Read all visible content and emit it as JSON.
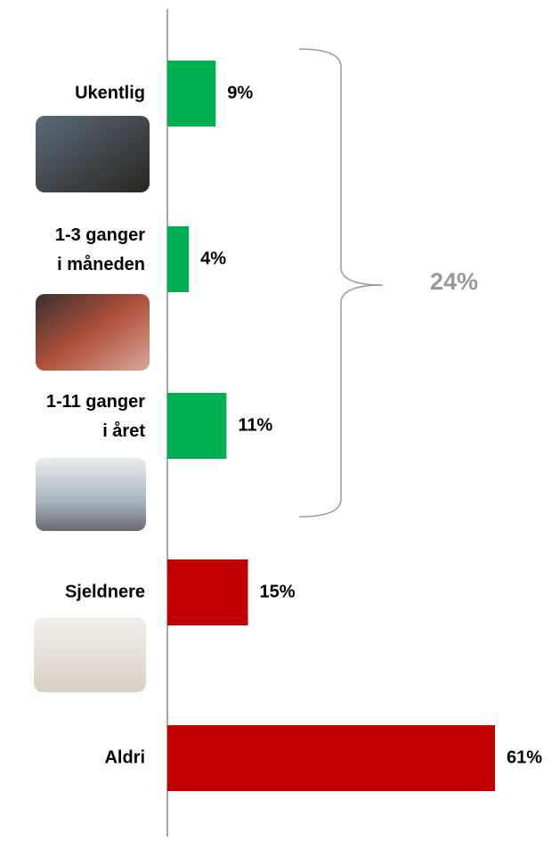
{
  "chart_data": {
    "type": "bar",
    "orientation": "horizontal",
    "categories": [
      [
        "Ukentlig"
      ],
      [
        "1-3 ganger",
        "i måneden"
      ],
      [
        "1-11 ganger",
        "i året"
      ],
      [
        "Sjeldnere"
      ],
      [
        "Aldri"
      ]
    ],
    "values": [
      9,
      4,
      11,
      15,
      61
    ],
    "value_labels": [
      "9%",
      "4%",
      "11%",
      "15%",
      "61%"
    ],
    "colors": [
      "#00b050",
      "#00b050",
      "#00b050",
      "#c00000",
      "#c00000"
    ],
    "bracket_label": "24%"
  }
}
